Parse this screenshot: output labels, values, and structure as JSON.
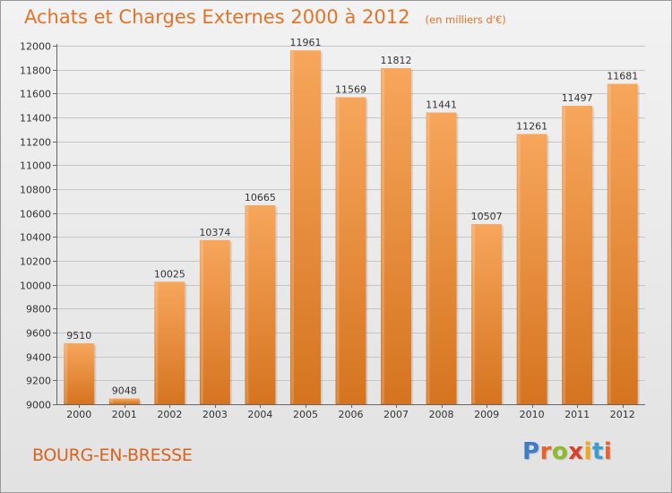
{
  "header": {
    "title": "Achats et Charges Externes 2000 à 2012",
    "subtitle": "(en milliers d'€)"
  },
  "footer": {
    "city": "BOURG-EN-BRESSE",
    "brand": "Proxiti"
  },
  "colors": {
    "bar_light": "#f7a65c",
    "bar_dark": "#d5741f",
    "title": "#e0742a",
    "brand_letters": [
      "#3d7dc8",
      "#e8632b",
      "#8bbd2b",
      "#d9412b",
      "#f0a81a",
      "#3d9bd0",
      "#e8632b"
    ]
  },
  "chart_data": {
    "type": "bar",
    "title": "Achats et Charges Externes 2000 à 2012",
    "subtitle": "(en milliers d'€)",
    "categories": [
      "2000",
      "2001",
      "2002",
      "2003",
      "2004",
      "2005",
      "2006",
      "2007",
      "2008",
      "2009",
      "2010",
      "2011",
      "2012"
    ],
    "values": [
      9510,
      9048,
      10025,
      10374,
      10665,
      11961,
      11569,
      11812,
      11441,
      10507,
      11261,
      11497,
      11681
    ],
    "value_labels": [
      "9510",
      "9048",
      "10025",
      "10374",
      "10665",
      "11961",
      "11569",
      "11812",
      "11441",
      "10507",
      "11261",
      "11497",
      "11681"
    ],
    "y_ticks": [
      "9000",
      "9200",
      "9400",
      "9600",
      "9800",
      "10000",
      "10200",
      "10400",
      "10600",
      "10800",
      "11000",
      "11200",
      "11400",
      "11600",
      "11800",
      "12000"
    ],
    "ylim": [
      9000,
      12000
    ],
    "grid": true,
    "legend": "none"
  }
}
